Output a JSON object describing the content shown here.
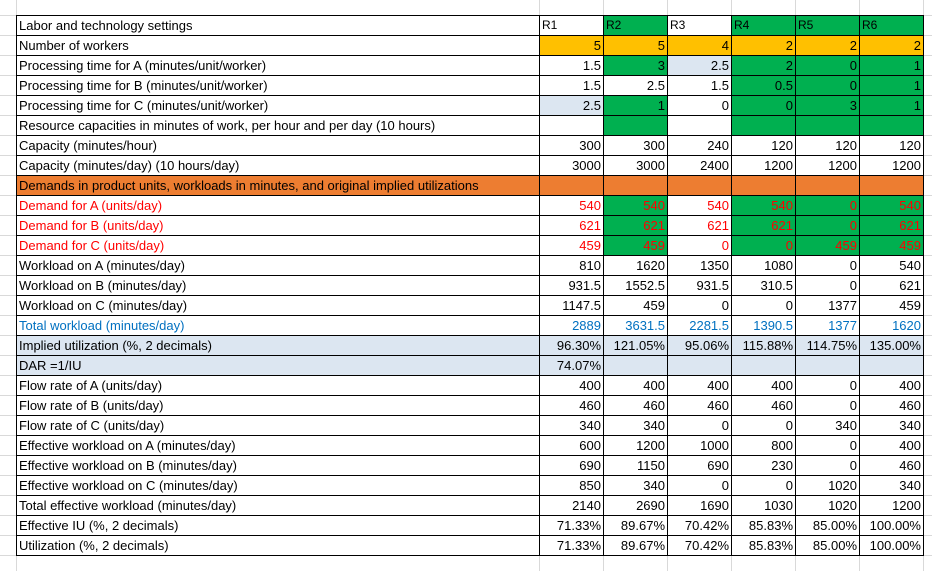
{
  "columns": [
    "R1",
    "R2",
    "R3",
    "R4",
    "R5",
    "R6"
  ],
  "header_label": "Labor and technology settings",
  "colors": {
    "orange": "#ffc000",
    "green": "#00b050",
    "light_blue": "#dce6f1",
    "band_orange": "#ed7d31",
    "red": "#ff0000",
    "blue": "#0070c0"
  },
  "rows": [
    {
      "label": "Number of workers",
      "values": [
        "5",
        "5",
        "4",
        "2",
        "2",
        "2"
      ],
      "fills": [
        "orange",
        "orange",
        "orange",
        "orange",
        "orange",
        "orange"
      ]
    },
    {
      "label": "Processing time for A (minutes/unit/worker)",
      "values": [
        "1.5",
        "3",
        "2.5",
        "2",
        "0",
        "1"
      ],
      "fills": [
        "",
        "green",
        "lblue",
        "green",
        "green",
        "green"
      ]
    },
    {
      "label": "Processing time for B (minutes/unit/worker)",
      "values": [
        "1.5",
        "2.5",
        "1.5",
        "0.5",
        "0",
        "1"
      ],
      "fills": [
        "",
        "",
        "",
        "green",
        "green",
        "green"
      ]
    },
    {
      "label": "Processing time for C (minutes/unit/worker)",
      "values": [
        "2.5",
        "1",
        "0",
        "0",
        "3",
        "1"
      ],
      "fills": [
        "lblue",
        "green",
        "",
        "green",
        "green",
        "green"
      ]
    },
    {
      "label": "Resource capacities in minutes of work, per hour and per day (10 hours)",
      "values": [
        "",
        "",
        "",
        "",
        "",
        ""
      ],
      "fills": [
        "",
        "green",
        "",
        "green",
        "green",
        "green"
      ],
      "span": true
    },
    {
      "label": "Capacity (minutes/hour)",
      "values": [
        "300",
        "300",
        "240",
        "120",
        "120",
        "120"
      ],
      "fills": [
        "",
        "",
        "",
        "",
        "",
        ""
      ]
    },
    {
      "label": "Capacity (minutes/day) (10 hours/day)",
      "values": [
        "3000",
        "3000",
        "2400",
        "1200",
        "1200",
        "1200"
      ],
      "fills": [
        "",
        "",
        "",
        "",
        "",
        ""
      ]
    },
    {
      "label": "Demands in product units, workloads in minutes, and original implied utilizations",
      "values": [
        "",
        "",
        "",
        "",
        "",
        ""
      ],
      "band": "orange",
      "span": true
    },
    {
      "label": "Demand for A (units/day)",
      "values": [
        "540",
        "540",
        "540",
        "540",
        "0",
        "540"
      ],
      "fills": [
        "",
        "green",
        "",
        "green",
        "green",
        "green"
      ],
      "color": "red"
    },
    {
      "label": "Demand for B (units/day)",
      "values": [
        "621",
        "621",
        "621",
        "621",
        "0",
        "621"
      ],
      "fills": [
        "",
        "green",
        "",
        "green",
        "green",
        "green"
      ],
      "color": "red"
    },
    {
      "label": "Demand for C (units/day)",
      "values": [
        "459",
        "459",
        "0",
        "0",
        "459",
        "459"
      ],
      "fills": [
        "",
        "green",
        "",
        "green",
        "green",
        "green"
      ],
      "color": "red"
    },
    {
      "label": "Workload on A (minutes/day)",
      "values": [
        "810",
        "1620",
        "1350",
        "1080",
        "0",
        "540"
      ],
      "fills": [
        "",
        "",
        "",
        "",
        "",
        ""
      ]
    },
    {
      "label": "Workload on B (minutes/day)",
      "values": [
        "931.5",
        "1552.5",
        "931.5",
        "310.5",
        "0",
        "621"
      ],
      "fills": [
        "",
        "",
        "",
        "",
        "",
        ""
      ]
    },
    {
      "label": "Workload on C (minutes/day)",
      "values": [
        "1147.5",
        "459",
        "0",
        "0",
        "1377",
        "459"
      ],
      "fills": [
        "",
        "",
        "",
        "",
        "",
        ""
      ]
    },
    {
      "label": "Total workload (minutes/day)",
      "values": [
        "2889",
        "3631.5",
        "2281.5",
        "1390.5",
        "1377",
        "1620"
      ],
      "fills": [
        "",
        "",
        "",
        "",
        "",
        ""
      ],
      "color": "blue"
    },
    {
      "label": "Implied utilization (%, 2 decimals)",
      "values": [
        "96.30%",
        "121.05%",
        "95.06%",
        "115.88%",
        "114.75%",
        "135.00%"
      ],
      "band": "blue"
    },
    {
      "label": "DAR =1/IU",
      "values": [
        "74.07%",
        "",
        "",
        "",
        "",
        ""
      ],
      "band": "blue"
    },
    {
      "label": "Flow rate of A (units/day)",
      "values": [
        "400",
        "400",
        "400",
        "400",
        "0",
        "400"
      ],
      "fills": [
        "",
        "",
        "",
        "",
        "",
        ""
      ]
    },
    {
      "label": "Flow rate of B (units/day)",
      "values": [
        "460",
        "460",
        "460",
        "460",
        "0",
        "460"
      ],
      "fills": [
        "",
        "",
        "",
        "",
        "",
        ""
      ]
    },
    {
      "label": "Flow rate of C (units/day)",
      "values": [
        "340",
        "340",
        "0",
        "0",
        "340",
        "340"
      ],
      "fills": [
        "",
        "",
        "",
        "",
        "",
        ""
      ]
    },
    {
      "label": "Effective workload on A (minutes/day)",
      "values": [
        "600",
        "1200",
        "1000",
        "800",
        "0",
        "400"
      ],
      "fills": [
        "",
        "",
        "",
        "",
        "",
        ""
      ]
    },
    {
      "label": "Effective workload on B (minutes/day)",
      "values": [
        "690",
        "1150",
        "690",
        "230",
        "0",
        "460"
      ],
      "fills": [
        "",
        "",
        "",
        "",
        "",
        ""
      ]
    },
    {
      "label": "Effective workload on C (minutes/day)",
      "values": [
        "850",
        "340",
        "0",
        "0",
        "1020",
        "340"
      ],
      "fills": [
        "",
        "",
        "",
        "",
        "",
        ""
      ]
    },
    {
      "label": "Total effective workload (minutes/day)",
      "values": [
        "2140",
        "2690",
        "1690",
        "1030",
        "1020",
        "1200"
      ],
      "fills": [
        "",
        "",
        "",
        "",
        "",
        ""
      ]
    },
    {
      "label": "Effective IU (%, 2 decimals)",
      "values": [
        "71.33%",
        "89.67%",
        "70.42%",
        "85.83%",
        "85.00%",
        "100.00%"
      ],
      "fills": [
        "",
        "",
        "",
        "",
        "",
        ""
      ]
    },
    {
      "label": "Utilization (%, 2 decimals)",
      "values": [
        "71.33%",
        "89.67%",
        "70.42%",
        "85.83%",
        "85.00%",
        "100.00%"
      ],
      "fills": [
        "",
        "",
        "",
        "",
        "",
        ""
      ]
    }
  ]
}
